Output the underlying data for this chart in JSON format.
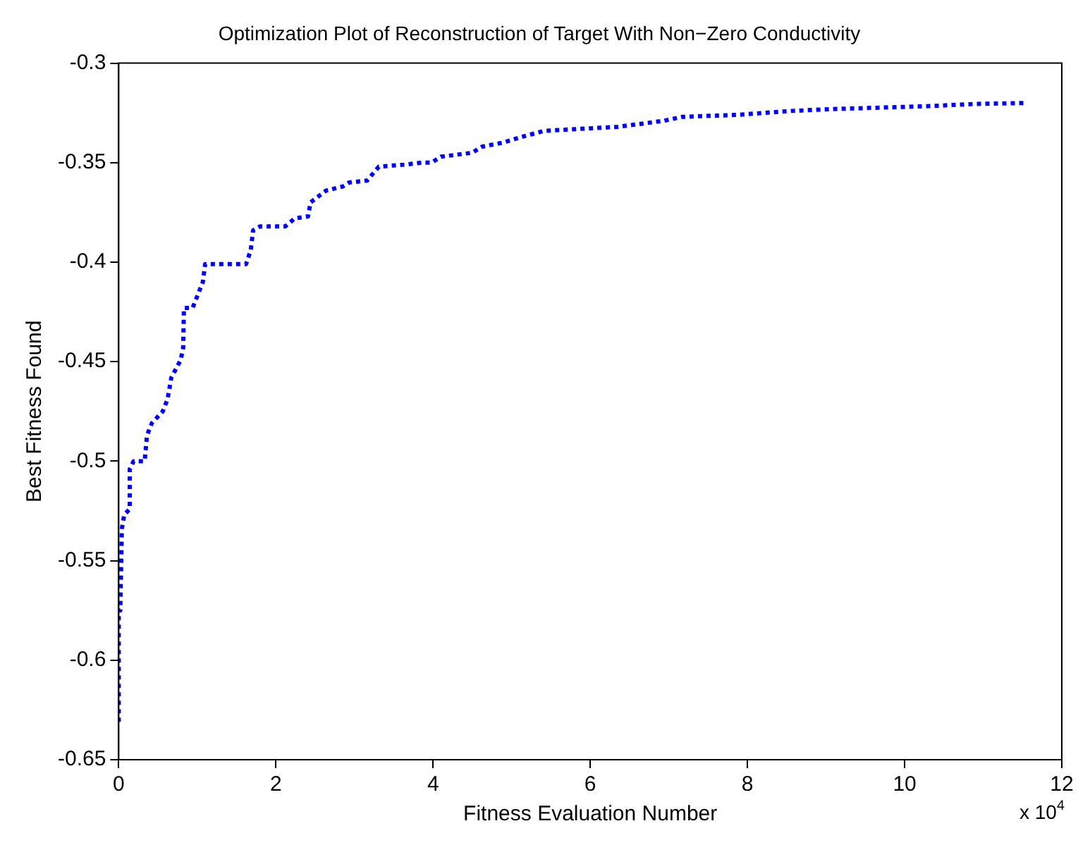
{
  "chart_data": {
    "type": "line",
    "title": "Optimization Plot of Reconstruction of Target With Non−Zero Conductivity",
    "xlabel": "Fitness Evaluation Number",
    "ylabel": "Best Fitness Found",
    "annotations": [
      "x 10$^{4}$"
    ],
    "series": [
      {
        "color": "#0000ff",
        "x": [
          0,
          0,
          0.02,
          0.04,
          0.07,
          0.14,
          0.14,
          0.19,
          0.33,
          0.36,
          0.42,
          0.56,
          0.62,
          0.67,
          0.79,
          0.82,
          0.83,
          0.94,
          1.07,
          1.1,
          1.62,
          1.68,
          1.71,
          1.8,
          2.12,
          2.24,
          2.41,
          2.44,
          2.64,
          2.85,
          2.93,
          3.16,
          3.31,
          3.63,
          3.86,
          3.98,
          4.1,
          4.5,
          4.62,
          4.88,
          5.13,
          5.42,
          6.35,
          6.93,
          7.17,
          7.86,
          8.56,
          9.14,
          10.31,
          10.89,
          11.56
        ],
        "values": [
          -0.631,
          -0.575,
          -0.575,
          -0.534,
          -0.527,
          -0.524,
          -0.504,
          -0.5,
          -0.5,
          -0.487,
          -0.481,
          -0.475,
          -0.469,
          -0.458,
          -0.449,
          -0.443,
          -0.423,
          -0.423,
          -0.41,
          -0.401,
          -0.401,
          -0.394,
          -0.384,
          -0.382,
          -0.382,
          -0.378,
          -0.377,
          -0.37,
          -0.364,
          -0.362,
          -0.36,
          -0.359,
          -0.352,
          -0.351,
          -0.35,
          -0.35,
          -0.347,
          -0.345,
          -0.342,
          -0.34,
          -0.337,
          -0.334,
          -0.332,
          -0.329,
          -0.327,
          -0.326,
          -0.324,
          -0.323,
          -0.3216,
          -0.3205,
          -0.32
        ]
      }
    ],
    "xlim": [
      0,
      12
    ],
    "xticks": [
      0,
      2,
      4,
      6,
      8,
      10,
      12
    ],
    "ylim": [
      -0.65,
      -0.3
    ],
    "yticks": [
      -0.65,
      -0.6,
      -0.55,
      -0.5,
      -0.45,
      -0.4,
      -0.35,
      -0.3
    ],
    "grid": false,
    "legend": false,
    "marker": "none",
    "line_style": "dotted"
  }
}
